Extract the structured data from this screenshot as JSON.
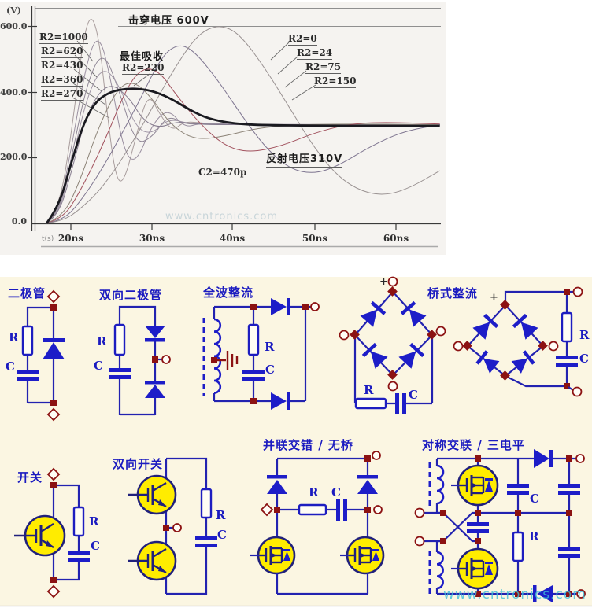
{
  "chart": {
    "v_label": "(V)",
    "t_label": "t(s)",
    "y_ticks": [
      "600.0",
      "400.0",
      "200.0",
      "0.0"
    ],
    "x_ticks": [
      "20ns",
      "30ns",
      "40ns",
      "50ns",
      "60ns"
    ],
    "breakdown_label": "击穿电压 600V",
    "best_label": "最佳吸收",
    "best_r2": "R2=220",
    "left_labels": [
      "R2=1000",
      "R2=620",
      "R2=430",
      "R2=360",
      "R2=270"
    ],
    "right_labels": [
      "R2=0",
      "R2=24",
      "R2=75",
      "R2=150"
    ],
    "reflect_label": "反射电压310V",
    "c2_label": "C2=470p"
  },
  "chart_data": {
    "type": "line",
    "xlabel": "t(s)",
    "x_unit": "ns",
    "x_ticks_ns": [
      20,
      30,
      40,
      50,
      60
    ],
    "ylabel": "(V)",
    "ylim": [
      0,
      650
    ],
    "y_ticks": [
      0,
      200,
      400,
      600
    ],
    "annotations": {
      "breakdown_voltage_V": 600,
      "reflected_voltage_V": 310,
      "best_absorption_R2_ohm": 220,
      "C2": "470p"
    },
    "series": [
      {
        "name": "R2=1000",
        "color": "#a89c9c",
        "width": 1,
        "points": [
          [
            17,
            0
          ],
          [
            18.5,
            40
          ],
          [
            20,
            260
          ],
          [
            21.5,
            560
          ],
          [
            22.5,
            640
          ],
          [
            23.5,
            560
          ],
          [
            24.5,
            330
          ],
          [
            25.5,
            140
          ],
          [
            26.5,
            120
          ],
          [
            28,
            260
          ],
          [
            29.5,
            400
          ],
          [
            31,
            330
          ],
          [
            32.5,
            280
          ],
          [
            34,
            310
          ],
          [
            36,
            305
          ],
          [
            40,
            300
          ],
          [
            45,
            300
          ],
          [
            55,
            300
          ],
          [
            65.5,
            300
          ]
        ]
      },
      {
        "name": "R2=620",
        "color": "#9a8fa0",
        "width": 1,
        "points": [
          [
            17,
            0
          ],
          [
            18.5,
            35
          ],
          [
            20,
            220
          ],
          [
            22,
            500
          ],
          [
            23.5,
            580
          ],
          [
            25,
            430
          ],
          [
            26.5,
            220
          ],
          [
            28,
            180
          ],
          [
            30,
            300
          ],
          [
            32,
            350
          ],
          [
            34,
            290
          ],
          [
            36,
            305
          ],
          [
            40,
            300
          ],
          [
            50,
            300
          ],
          [
            65.5,
            300
          ]
        ]
      },
      {
        "name": "R2=430",
        "color": "#8f8696",
        "width": 1,
        "points": [
          [
            17,
            0
          ],
          [
            18.5,
            30
          ],
          [
            20,
            190
          ],
          [
            22,
            430
          ],
          [
            24,
            530
          ],
          [
            26,
            400
          ],
          [
            28,
            240
          ],
          [
            30,
            260
          ],
          [
            32,
            330
          ],
          [
            34,
            300
          ],
          [
            37,
            305
          ],
          [
            42,
            300
          ],
          [
            50,
            300
          ],
          [
            65.5,
            300
          ]
        ]
      },
      {
        "name": "R2=360",
        "color": "#a096a6",
        "width": 1,
        "points": [
          [
            17,
            0
          ],
          [
            18.5,
            28
          ],
          [
            20,
            170
          ],
          [
            22,
            390
          ],
          [
            24,
            480
          ],
          [
            26,
            420
          ],
          [
            28,
            290
          ],
          [
            30,
            270
          ],
          [
            32,
            320
          ],
          [
            35,
            300
          ],
          [
            40,
            302
          ],
          [
            50,
            300
          ],
          [
            65.5,
            300
          ]
        ]
      },
      {
        "name": "R2=270",
        "color": "#857b8e",
        "width": 1,
        "points": [
          [
            17,
            0
          ],
          [
            18.5,
            25
          ],
          [
            20,
            150
          ],
          [
            22,
            340
          ],
          [
            24.5,
            430
          ],
          [
            27,
            390
          ],
          [
            29,
            310
          ],
          [
            31,
            290
          ],
          [
            33,
            310
          ],
          [
            36,
            300
          ],
          [
            42,
            300
          ],
          [
            55,
            300
          ],
          [
            65.5,
            298
          ]
        ]
      },
      {
        "name": "R2=150",
        "color": "#8d8478",
        "width": 1,
        "points": [
          [
            17,
            0
          ],
          [
            19,
            20
          ],
          [
            21,
            120
          ],
          [
            23.5,
            300
          ],
          [
            26,
            420
          ],
          [
            28,
            430
          ],
          [
            30,
            380
          ],
          [
            32,
            310
          ],
          [
            34,
            270
          ],
          [
            36,
            255
          ],
          [
            39,
            265
          ],
          [
            43,
            290
          ],
          [
            48,
            300
          ],
          [
            55,
            302
          ],
          [
            65.5,
            300
          ]
        ]
      },
      {
        "name": "R2=75",
        "color": "#a2525e",
        "width": 1,
        "points": [
          [
            17,
            0
          ],
          [
            19,
            15
          ],
          [
            21,
            90
          ],
          [
            24,
            240
          ],
          [
            27,
            420
          ],
          [
            29,
            475
          ],
          [
            31,
            460
          ],
          [
            33,
            390
          ],
          [
            36,
            300
          ],
          [
            39,
            235
          ],
          [
            42,
            215
          ],
          [
            46,
            235
          ],
          [
            50,
            275
          ],
          [
            54,
            300
          ],
          [
            58,
            308
          ],
          [
            65.5,
            302
          ]
        ]
      },
      {
        "name": "R2=24",
        "color": "#7e7590",
        "width": 1,
        "points": [
          [
            17,
            0
          ],
          [
            19,
            10
          ],
          [
            21,
            60
          ],
          [
            24,
            170
          ],
          [
            28,
            350
          ],
          [
            31,
            500
          ],
          [
            33,
            545
          ],
          [
            35,
            530
          ],
          [
            38,
            440
          ],
          [
            41,
            330
          ],
          [
            44,
            230
          ],
          [
            47,
            165
          ],
          [
            50,
            150
          ],
          [
            53,
            175
          ],
          [
            57,
            235
          ],
          [
            61,
            280
          ],
          [
            65.5,
            300
          ]
        ]
      },
      {
        "name": "R2=0",
        "color": "#989090",
        "width": 1,
        "points": [
          [
            17,
            0
          ],
          [
            19,
            8
          ],
          [
            21,
            40
          ],
          [
            24,
            110
          ],
          [
            28,
            260
          ],
          [
            32,
            440
          ],
          [
            35,
            555
          ],
          [
            37,
            595
          ],
          [
            39,
            600
          ],
          [
            41,
            570
          ],
          [
            44,
            470
          ],
          [
            47,
            350
          ],
          [
            50,
            230
          ],
          [
            53,
            140
          ],
          [
            56,
            95
          ],
          [
            59,
            85
          ],
          [
            62,
            110
          ],
          [
            65.5,
            160
          ]
        ]
      },
      {
        "name": "R2=220",
        "color": "#1a1a20",
        "width": 2.8,
        "points": [
          [
            17,
            0
          ],
          [
            18.5,
            50
          ],
          [
            20,
            180
          ],
          [
            21.5,
            300
          ],
          [
            23,
            370
          ],
          [
            25,
            402
          ],
          [
            27,
            410
          ],
          [
            29,
            408
          ],
          [
            31,
            395
          ],
          [
            33,
            370
          ],
          [
            35,
            340
          ],
          [
            37,
            318
          ],
          [
            40,
            303
          ],
          [
            44,
            298
          ],
          [
            50,
            297
          ],
          [
            58,
            296
          ],
          [
            65.5,
            296
          ]
        ]
      }
    ]
  },
  "circuits": {
    "diode": {
      "title": "二极管",
      "r": "R",
      "c": "C"
    },
    "bidir_diode": {
      "title": "双向二极管",
      "r": "R",
      "c": "C"
    },
    "full_wave": {
      "title": "全波整流",
      "r": "R",
      "c": "C"
    },
    "bridge": {
      "title": "桥式整流",
      "plus": "+",
      "r1": "R",
      "c1": "C",
      "r2": "R",
      "c2": "C"
    },
    "switch": {
      "title": "开关",
      "r": "R",
      "c": "C"
    },
    "bidir_switch": {
      "title": "双向开关",
      "r": "R",
      "c": "C"
    },
    "interleaved": {
      "title": "并联交错 / 无桥",
      "r": "R",
      "c": "C"
    },
    "symmetric": {
      "title": "对称交联 / 三电平",
      "r": "R",
      "c": "C"
    }
  },
  "watermark": {
    "text": "www.cntronics.com"
  }
}
